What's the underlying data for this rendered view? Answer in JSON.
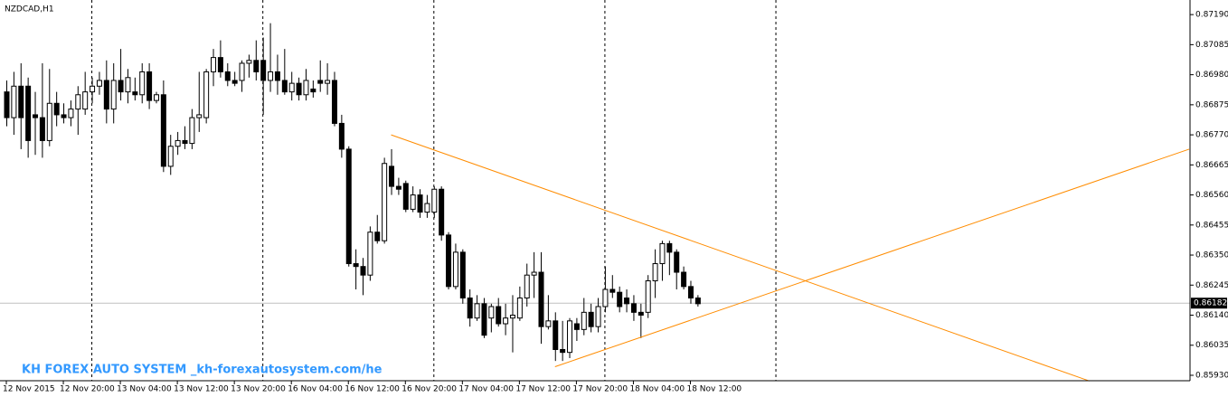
{
  "chart_data": {
    "type": "candlestick",
    "title": "NZDCAD,H1",
    "watermark": "KH FOREX AUTO SYSTEM _kh-forexautosystem.com/he",
    "categories": [
      "12 Nov 2015",
      null,
      null,
      null,
      null,
      null,
      null,
      null,
      "12 Nov 20:00",
      null,
      null,
      null,
      null,
      null,
      null,
      null,
      "13 Nov 04:00",
      null,
      null,
      null,
      null,
      null,
      null,
      null,
      "13 Nov 12:00",
      null,
      null,
      null,
      null,
      null,
      null,
      null,
      "13 Nov 20:00",
      null,
      null,
      null,
      null,
      null,
      null,
      null,
      "16 Nov 04:00",
      null,
      null,
      null,
      null,
      null,
      null,
      null,
      "16 Nov 12:00",
      null,
      null,
      null,
      null,
      null,
      null,
      null,
      "16 Nov 20:00",
      null,
      null,
      null,
      null,
      null,
      null,
      null,
      "17 Nov 04:00",
      null,
      null,
      null,
      null,
      null,
      null,
      null,
      "17 Nov 12:00",
      null,
      null,
      null,
      null,
      null,
      null,
      null,
      "17 Nov 20:00",
      null,
      null,
      null,
      null,
      null,
      null,
      null,
      "18 Nov 04:00",
      null,
      null,
      null,
      null,
      null,
      null,
      null,
      "18 Nov 12:00",
      null
    ],
    "ohlc": [
      [
        0.8692,
        0.8696,
        0.868,
        0.8683
      ],
      [
        0.8683,
        0.8699,
        0.8677,
        0.8694
      ],
      [
        0.8694,
        0.8702,
        0.8672,
        0.8683
      ],
      [
        0.8694,
        0.8697,
        0.8669,
        0.8675
      ],
      [
        0.8684,
        0.8692,
        0.867,
        0.8683
      ],
      [
        0.8683,
        0.8702,
        0.8669,
        0.8675
      ],
      [
        0.8675,
        0.87,
        0.8673,
        0.8688
      ],
      [
        0.8688,
        0.8692,
        0.868,
        0.8684
      ],
      [
        0.8684,
        0.8688,
        0.8681,
        0.8683
      ],
      [
        0.8683,
        0.8689,
        0.868,
        0.8686
      ],
      [
        0.8686,
        0.8694,
        0.8677,
        0.8691
      ],
      [
        0.8686,
        0.8699,
        0.8684,
        0.8692
      ],
      [
        0.8692,
        0.8697,
        0.8688,
        0.8694
      ],
      [
        0.8694,
        0.8699,
        0.8691,
        0.8696
      ],
      [
        0.8696,
        0.8703,
        0.8681,
        0.8686
      ],
      [
        0.8686,
        0.8702,
        0.8681,
        0.8696
      ],
      [
        0.8696,
        0.8707,
        0.8689,
        0.8692
      ],
      [
        0.8692,
        0.87,
        0.8688,
        0.8697
      ],
      [
        0.8692,
        0.8697,
        0.8689,
        0.8691
      ],
      [
        0.8691,
        0.8702,
        0.8688,
        0.8699
      ],
      [
        0.8699,
        0.8702,
        0.8686,
        0.8689
      ],
      [
        0.8689,
        0.8692,
        0.8688,
        0.8691
      ],
      [
        0.8691,
        0.8696,
        0.8664,
        0.8666
      ],
      [
        0.8666,
        0.8677,
        0.8663,
        0.8673
      ],
      [
        0.8673,
        0.8678,
        0.867,
        0.8675
      ],
      [
        0.8675,
        0.868,
        0.8672,
        0.8674
      ],
      [
        0.8674,
        0.8686,
        0.8672,
        0.8683
      ],
      [
        0.8683,
        0.8699,
        0.8678,
        0.8684
      ],
      [
        0.8683,
        0.87,
        0.8681,
        0.8699
      ],
      [
        0.8699,
        0.8707,
        0.8694,
        0.8704
      ],
      [
        0.8704,
        0.871,
        0.8697,
        0.8699
      ],
      [
        0.8699,
        0.8702,
        0.8694,
        0.8696
      ],
      [
        0.8696,
        0.8699,
        0.8694,
        0.8695
      ],
      [
        0.8696,
        0.8703,
        0.8692,
        0.8702
      ],
      [
        0.8702,
        0.8705,
        0.8697,
        0.8703
      ],
      [
        0.8703,
        0.871,
        0.8696,
        0.8699
      ],
      [
        0.8703,
        0.8711,
        0.8684,
        0.8696
      ],
      [
        0.8696,
        0.8716,
        0.8692,
        0.8699
      ],
      [
        0.8699,
        0.8705,
        0.8691,
        0.8696
      ],
      [
        0.8696,
        0.8707,
        0.8691,
        0.8692
      ],
      [
        0.8692,
        0.8699,
        0.8689,
        0.8695
      ],
      [
        0.8695,
        0.8697,
        0.8689,
        0.8691
      ],
      [
        0.8691,
        0.87,
        0.8689,
        0.8696
      ],
      [
        0.8693,
        0.8696,
        0.869,
        0.8692
      ],
      [
        0.8696,
        0.8703,
        0.8692,
        0.8695
      ],
      [
        0.8695,
        0.8702,
        0.8691,
        0.8696
      ],
      [
        0.8696,
        0.8699,
        0.868,
        0.8681
      ],
      [
        0.8681,
        0.8684,
        0.8669,
        0.8672
      ],
      [
        0.8672,
        0.8673,
        0.8631,
        0.8632
      ],
      [
        0.8632,
        0.8637,
        0.8623,
        0.8631
      ],
      [
        0.8631,
        0.8634,
        0.8621,
        0.8628
      ],
      [
        0.8628,
        0.8645,
        0.8626,
        0.8643
      ],
      [
        0.8643,
        0.8649,
        0.8639,
        0.864
      ],
      [
        0.864,
        0.8669,
        0.8639,
        0.8667
      ],
      [
        0.8666,
        0.8672,
        0.8656,
        0.8659
      ],
      [
        0.8659,
        0.8662,
        0.8656,
        0.8658
      ],
      [
        0.866,
        0.8661,
        0.865,
        0.8651
      ],
      [
        0.8651,
        0.8659,
        0.865,
        0.8656
      ],
      [
        0.8656,
        0.8658,
        0.8648,
        0.865
      ],
      [
        0.865,
        0.8656,
        0.8648,
        0.8653
      ],
      [
        0.865,
        0.8659,
        0.8648,
        0.8658
      ],
      [
        0.8658,
        0.8659,
        0.864,
        0.8642
      ],
      [
        0.8642,
        0.8643,
        0.8623,
        0.8624
      ],
      [
        0.8624,
        0.8639,
        0.8623,
        0.8636
      ],
      [
        0.8636,
        0.8637,
        0.8618,
        0.862
      ],
      [
        0.862,
        0.8623,
        0.861,
        0.8613
      ],
      [
        0.8613,
        0.8621,
        0.8612,
        0.8618
      ],
      [
        0.8618,
        0.862,
        0.8606,
        0.8607
      ],
      [
        0.8613,
        0.8618,
        0.8608,
        0.8617
      ],
      [
        0.8617,
        0.862,
        0.861,
        0.8611
      ],
      [
        0.8611,
        0.8618,
        0.8607,
        0.8613
      ],
      [
        0.8613,
        0.8621,
        0.8601,
        0.8614
      ],
      [
        0.8613,
        0.8624,
        0.8612,
        0.862
      ],
      [
        0.862,
        0.8632,
        0.8617,
        0.8628
      ],
      [
        0.8628,
        0.8636,
        0.862,
        0.8629
      ],
      [
        0.8629,
        0.8636,
        0.8604,
        0.861
      ],
      [
        0.861,
        0.8621,
        0.8609,
        0.8612
      ],
      [
        0.8612,
        0.8615,
        0.8598,
        0.8602
      ],
      [
        0.8602,
        0.8612,
        0.8598,
        0.8601
      ],
      [
        0.8601,
        0.8613,
        0.8599,
        0.8612
      ],
      [
        0.8611,
        0.8613,
        0.8605,
        0.8609
      ],
      [
        0.8609,
        0.862,
        0.8607,
        0.8615
      ],
      [
        0.8615,
        0.8618,
        0.8608,
        0.861
      ],
      [
        0.861,
        0.862,
        0.8608,
        0.8617
      ],
      [
        0.8617,
        0.8631,
        0.8615,
        0.8623
      ],
      [
        0.8623,
        0.8628,
        0.862,
        0.8622
      ],
      [
        0.8622,
        0.8624,
        0.8615,
        0.8617
      ],
      [
        0.862,
        0.8623,
        0.8615,
        0.8618
      ],
      [
        0.8618,
        0.8621,
        0.8612,
        0.8615
      ],
      [
        0.8615,
        0.8618,
        0.8606,
        0.8614
      ],
      [
        0.8615,
        0.8628,
        0.8613,
        0.8626
      ],
      [
        0.8626,
        0.8637,
        0.862,
        0.8632
      ],
      [
        0.8632,
        0.864,
        0.8626,
        0.8639
      ],
      [
        0.8639,
        0.864,
        0.8628,
        0.8636
      ],
      [
        0.8636,
        0.8637,
        0.8623,
        0.8629
      ],
      [
        0.8629,
        0.8631,
        0.8623,
        0.8624
      ],
      [
        0.8624,
        0.8626,
        0.8618,
        0.862
      ],
      [
        0.862,
        0.8621,
        0.8617,
        0.8618
      ]
    ],
    "up_color": "#ffffff",
    "down_color": "#000000",
    "ylim": [
      0.85911,
      0.87241
    ],
    "yticks": [
      {
        "value": 0.8719,
        "label": "0.87190"
      },
      0.87085,
      {
        "value": 0.8698,
        "label": "0.86980"
      },
      0.86875,
      {
        "value": 0.8677,
        "label": "0.86770"
      },
      0.86665,
      {
        "value": 0.8656,
        "label": "0.86560"
      },
      0.86455,
      {
        "value": 0.8635,
        "label": "0.86350"
      },
      0.86245,
      {
        "value": 0.8614,
        "label": "0.86140"
      },
      0.86035,
      {
        "value": 0.8593,
        "label": "0.85930"
      }
    ],
    "current_price": 0.86182,
    "period_separators": [
      12,
      36,
      60,
      84,
      108
    ],
    "trendlines": [
      {
        "x": [
          54,
          152
        ],
        "y": [
          0.8677,
          0.8591
        ],
        "color": "#ff8c00"
      },
      {
        "x": [
          77,
          166
        ],
        "y": [
          0.8596,
          0.8672
        ],
        "color": "#ff8c00"
      }
    ]
  }
}
